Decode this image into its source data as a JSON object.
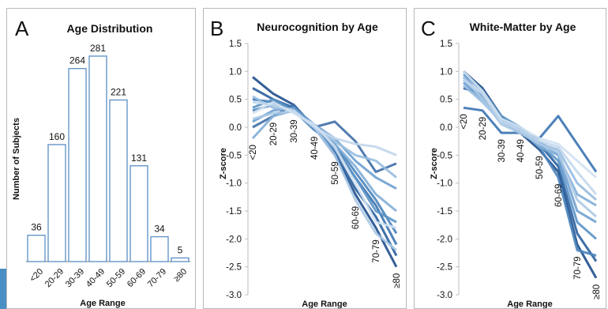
{
  "panels": [
    {
      "letter": "A",
      "chart_data": {
        "type": "bar",
        "title": "Age Distribution",
        "xlabel": "Age Range",
        "ylabel": "Number of Subjects",
        "categories": [
          "<20",
          "20-29",
          "30-39",
          "40-49",
          "50-59",
          "60-69",
          "70-79",
          "≥80"
        ],
        "values": [
          36,
          160,
          264,
          281,
          221,
          131,
          34,
          5
        ],
        "ylim": [
          0,
          281
        ],
        "bar_color": "#5b8fc6",
        "data_labels": true,
        "grid": false
      }
    },
    {
      "letter": "B",
      "chart_data": {
        "type": "line",
        "title": "Neurocognition by Age",
        "xlabel": "Age Range",
        "ylabel": "Z-score",
        "categories": [
          "<20",
          "20-29",
          "30-39",
          "40-49",
          "50-59",
          "60-69",
          "70-79",
          "≥80"
        ],
        "ylim": [
          -3.0,
          1.5
        ],
        "yticks": [
          "1.5",
          "1.0",
          "0.5",
          "0.0",
          "-0.5",
          "-1.0",
          "-1.5",
          "-2.0",
          "-2.5",
          "-3.0"
        ],
        "grid": false,
        "legend": "none",
        "series": [
          {
            "color": "#1f4e8c",
            "values": [
              0.9,
              0.6,
              0.4,
              0.0,
              -0.5,
              -1.2,
              -1.8,
              -2.5
            ]
          },
          {
            "color": "#2a5f9e",
            "values": [
              0.7,
              0.5,
              0.35,
              0.0,
              -0.45,
              -1.1,
              -1.6,
              -2.3
            ]
          },
          {
            "color": "#3a73b0",
            "values": [
              0.5,
              0.45,
              0.3,
              0.0,
              -0.35,
              -0.9,
              -1.4,
              -2.1
            ]
          },
          {
            "color": "#4a84bd",
            "values": [
              0.3,
              0.4,
              0.3,
              -0.05,
              -0.3,
              -0.8,
              -1.3,
              -1.9
            ]
          },
          {
            "color": "#5b93c7",
            "values": [
              0.35,
              0.5,
              0.3,
              0.0,
              -0.4,
              -0.9,
              -1.5,
              -1.7
            ]
          },
          {
            "color": "#3f6ea8",
            "values": [
              0.0,
              0.2,
              0.4,
              0.0,
              0.1,
              -0.25,
              -0.8,
              -0.65
            ]
          },
          {
            "color": "#6ea0d0",
            "values": [
              0.1,
              0.3,
              0.35,
              0.05,
              -0.2,
              -0.6,
              -0.9,
              -1.1
            ]
          },
          {
            "color": "#82aed6",
            "values": [
              -0.2,
              0.2,
              0.3,
              0.0,
              -0.3,
              -0.7,
              -1.2,
              -1.5
            ]
          },
          {
            "color": "#98bde0",
            "values": [
              0.55,
              0.35,
              0.3,
              0.0,
              -0.25,
              -0.5,
              -0.6,
              -0.9
            ]
          },
          {
            "color": "#abc9e6",
            "values": [
              0.15,
              0.25,
              0.28,
              0.0,
              -0.5,
              -1.3,
              -1.9,
              -2.2
            ]
          },
          {
            "color": "#c2d7ec",
            "values": [
              0.45,
              0.4,
              0.3,
              0.0,
              -0.2,
              -0.3,
              -0.35,
              -0.5
            ]
          },
          {
            "color": "#d1e1f1",
            "values": [
              0.25,
              0.45,
              0.25,
              0.05,
              -0.35,
              -1.0,
              -1.7,
              -1.8
            ]
          }
        ]
      }
    },
    {
      "letter": "C",
      "chart_data": {
        "type": "line",
        "title": "White-Matter by Age",
        "xlabel": "Age Range",
        "ylabel": "Z-score",
        "categories": [
          "<20",
          "20-29",
          "30-39",
          "40-49",
          "50-59",
          "60-69",
          "70-79",
          "≥80"
        ],
        "ylim": [
          -3.0,
          1.5
        ],
        "yticks": [
          "1.5",
          "1.0",
          "0.5",
          "0.0",
          "-0.5",
          "-1.0",
          "-1.5",
          "-2.0",
          "-2.5",
          "-3.0"
        ],
        "grid": false,
        "legend": "none",
        "series": [
          {
            "color": "#1f4e8c",
            "values": [
              1.0,
              0.7,
              0.2,
              -0.1,
              -0.4,
              -0.8,
              -2.1,
              -2.7
            ]
          },
          {
            "color": "#2a5f9e",
            "values": [
              0.7,
              0.6,
              0.15,
              -0.05,
              -0.3,
              -0.7,
              -1.9,
              -2.4
            ]
          },
          {
            "color": "#3a73b0",
            "values": [
              0.35,
              0.3,
              -0.1,
              -0.1,
              -0.2,
              0.2,
              -0.3,
              -0.8
            ]
          },
          {
            "color": "#4a84bd",
            "values": [
              0.9,
              0.55,
              0.1,
              -0.05,
              -0.35,
              -0.9,
              -2.2,
              -2.3
            ]
          },
          {
            "color": "#5b93c7",
            "values": [
              0.95,
              0.65,
              0.2,
              0.0,
              -0.3,
              -0.6,
              -1.7,
              -2.0
            ]
          },
          {
            "color": "#6ea0d0",
            "values": [
              0.8,
              0.5,
              0.1,
              -0.1,
              -0.25,
              -0.5,
              -1.5,
              -1.7
            ]
          },
          {
            "color": "#82aed6",
            "values": [
              0.85,
              0.55,
              0.15,
              -0.05,
              -0.35,
              -0.5,
              -1.2,
              -1.4
            ]
          },
          {
            "color": "#98bde0",
            "values": [
              0.75,
              0.45,
              0.1,
              -0.1,
              -0.3,
              -0.4,
              -1.0,
              -1.3
            ]
          },
          {
            "color": "#abc9e6",
            "values": [
              0.9,
              0.5,
              0.05,
              -0.1,
              -0.3,
              -0.45,
              -1.3,
              -1.6
            ]
          },
          {
            "color": "#c2d7ec",
            "values": [
              0.85,
              0.6,
              0.1,
              -0.05,
              -0.25,
              -0.35,
              -0.8,
              -1.2
            ]
          },
          {
            "color": "#d1e1f1",
            "values": [
              1.0,
              0.65,
              0.15,
              0.0,
              -0.2,
              -0.3,
              -0.6,
              -0.9
            ]
          }
        ]
      }
    }
  ]
}
